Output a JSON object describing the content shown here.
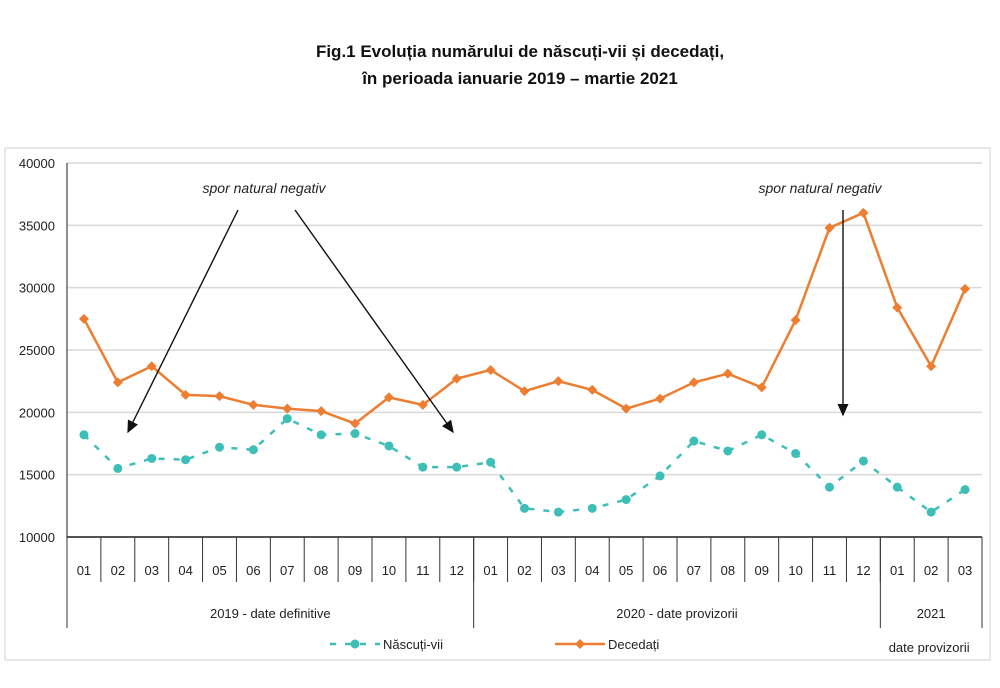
{
  "title_line1": "Fig.1 Evoluția numărului de născuți-vii și decedați,",
  "title_line2": "în perioada ianuarie 2019 –  martie 2021",
  "chart_data": {
    "type": "line",
    "categories": [
      "01",
      "02",
      "03",
      "04",
      "05",
      "06",
      "07",
      "08",
      "09",
      "10",
      "11",
      "12",
      "01",
      "02",
      "03",
      "04",
      "05",
      "06",
      "07",
      "08",
      "09",
      "10",
      "11",
      "12",
      "01",
      "02",
      "03"
    ],
    "groups": [
      {
        "label": "2019 - date definitive",
        "count": 12
      },
      {
        "label": "2020 - date provizorii",
        "count": 12
      },
      {
        "label": "2021",
        "sublabel": "date provizorii",
        "count": 3
      }
    ],
    "ylim": [
      10000,
      40000
    ],
    "yticks": [
      10000,
      15000,
      20000,
      25000,
      30000,
      35000,
      40000
    ],
    "grid": true,
    "legend_position": "bottom",
    "series": [
      {
        "name": "Născuți-vii",
        "color": "#3dbfb8",
        "style": "dashed",
        "marker": "circle",
        "values": [
          18200,
          15500,
          16300,
          16200,
          17200,
          17000,
          19500,
          18200,
          18300,
          17300,
          15600,
          15600,
          16000,
          12300,
          12000,
          12300,
          13000,
          14900,
          17700,
          16900,
          18200,
          16700,
          14000,
          16100,
          14000,
          12000,
          13800
        ]
      },
      {
        "name": "Decedați",
        "color": "#ed7d31",
        "style": "solid",
        "marker": "diamond",
        "values": [
          27500,
          22400,
          23700,
          21400,
          21300,
          20600,
          20300,
          20100,
          19100,
          21200,
          20600,
          22700,
          23400,
          21700,
          22500,
          21800,
          20300,
          21100,
          22400,
          23100,
          22000,
          27400,
          34800,
          36000,
          28400,
          23700,
          29900
        ]
      }
    ],
    "annotations": [
      {
        "text": "spor natural negativ",
        "arrows_to": [
          "02",
          "12"
        ],
        "period": "2019"
      },
      {
        "text": "spor natural negativ",
        "arrows_to": [
          "11"
        ],
        "period": "2020"
      }
    ]
  }
}
